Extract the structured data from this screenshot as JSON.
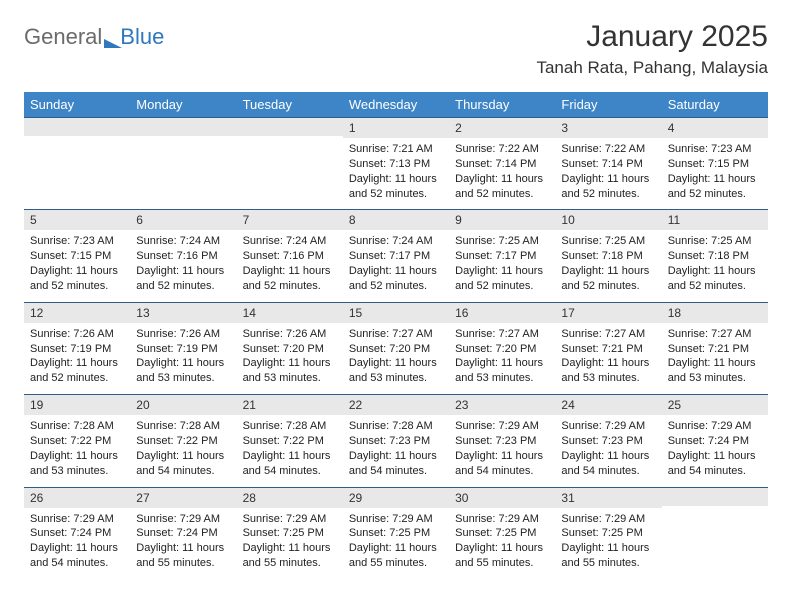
{
  "logo": {
    "text1": "General",
    "text2": "Blue"
  },
  "title": "January 2025",
  "location": "Tanah Rata, Pahang, Malaysia",
  "header_bg": "#3d85c6",
  "daynum_bg": "#e8e8e8",
  "border_color": "#2f5d8a",
  "day_headers": [
    "Sunday",
    "Monday",
    "Tuesday",
    "Wednesday",
    "Thursday",
    "Friday",
    "Saturday"
  ],
  "weeks": [
    [
      {
        "n": "",
        "sunrise": "",
        "sunset": "",
        "daylight": ""
      },
      {
        "n": "",
        "sunrise": "",
        "sunset": "",
        "daylight": ""
      },
      {
        "n": "",
        "sunrise": "",
        "sunset": "",
        "daylight": ""
      },
      {
        "n": "1",
        "sunrise": "Sunrise: 7:21 AM",
        "sunset": "Sunset: 7:13 PM",
        "daylight": "Daylight: 11 hours and 52 minutes."
      },
      {
        "n": "2",
        "sunrise": "Sunrise: 7:22 AM",
        "sunset": "Sunset: 7:14 PM",
        "daylight": "Daylight: 11 hours and 52 minutes."
      },
      {
        "n": "3",
        "sunrise": "Sunrise: 7:22 AM",
        "sunset": "Sunset: 7:14 PM",
        "daylight": "Daylight: 11 hours and 52 minutes."
      },
      {
        "n": "4",
        "sunrise": "Sunrise: 7:23 AM",
        "sunset": "Sunset: 7:15 PM",
        "daylight": "Daylight: 11 hours and 52 minutes."
      }
    ],
    [
      {
        "n": "5",
        "sunrise": "Sunrise: 7:23 AM",
        "sunset": "Sunset: 7:15 PM",
        "daylight": "Daylight: 11 hours and 52 minutes."
      },
      {
        "n": "6",
        "sunrise": "Sunrise: 7:24 AM",
        "sunset": "Sunset: 7:16 PM",
        "daylight": "Daylight: 11 hours and 52 minutes."
      },
      {
        "n": "7",
        "sunrise": "Sunrise: 7:24 AM",
        "sunset": "Sunset: 7:16 PM",
        "daylight": "Daylight: 11 hours and 52 minutes."
      },
      {
        "n": "8",
        "sunrise": "Sunrise: 7:24 AM",
        "sunset": "Sunset: 7:17 PM",
        "daylight": "Daylight: 11 hours and 52 minutes."
      },
      {
        "n": "9",
        "sunrise": "Sunrise: 7:25 AM",
        "sunset": "Sunset: 7:17 PM",
        "daylight": "Daylight: 11 hours and 52 minutes."
      },
      {
        "n": "10",
        "sunrise": "Sunrise: 7:25 AM",
        "sunset": "Sunset: 7:18 PM",
        "daylight": "Daylight: 11 hours and 52 minutes."
      },
      {
        "n": "11",
        "sunrise": "Sunrise: 7:25 AM",
        "sunset": "Sunset: 7:18 PM",
        "daylight": "Daylight: 11 hours and 52 minutes."
      }
    ],
    [
      {
        "n": "12",
        "sunrise": "Sunrise: 7:26 AM",
        "sunset": "Sunset: 7:19 PM",
        "daylight": "Daylight: 11 hours and 52 minutes."
      },
      {
        "n": "13",
        "sunrise": "Sunrise: 7:26 AM",
        "sunset": "Sunset: 7:19 PM",
        "daylight": "Daylight: 11 hours and 53 minutes."
      },
      {
        "n": "14",
        "sunrise": "Sunrise: 7:26 AM",
        "sunset": "Sunset: 7:20 PM",
        "daylight": "Daylight: 11 hours and 53 minutes."
      },
      {
        "n": "15",
        "sunrise": "Sunrise: 7:27 AM",
        "sunset": "Sunset: 7:20 PM",
        "daylight": "Daylight: 11 hours and 53 minutes."
      },
      {
        "n": "16",
        "sunrise": "Sunrise: 7:27 AM",
        "sunset": "Sunset: 7:20 PM",
        "daylight": "Daylight: 11 hours and 53 minutes."
      },
      {
        "n": "17",
        "sunrise": "Sunrise: 7:27 AM",
        "sunset": "Sunset: 7:21 PM",
        "daylight": "Daylight: 11 hours and 53 minutes."
      },
      {
        "n": "18",
        "sunrise": "Sunrise: 7:27 AM",
        "sunset": "Sunset: 7:21 PM",
        "daylight": "Daylight: 11 hours and 53 minutes."
      }
    ],
    [
      {
        "n": "19",
        "sunrise": "Sunrise: 7:28 AM",
        "sunset": "Sunset: 7:22 PM",
        "daylight": "Daylight: 11 hours and 53 minutes."
      },
      {
        "n": "20",
        "sunrise": "Sunrise: 7:28 AM",
        "sunset": "Sunset: 7:22 PM",
        "daylight": "Daylight: 11 hours and 54 minutes."
      },
      {
        "n": "21",
        "sunrise": "Sunrise: 7:28 AM",
        "sunset": "Sunset: 7:22 PM",
        "daylight": "Daylight: 11 hours and 54 minutes."
      },
      {
        "n": "22",
        "sunrise": "Sunrise: 7:28 AM",
        "sunset": "Sunset: 7:23 PM",
        "daylight": "Daylight: 11 hours and 54 minutes."
      },
      {
        "n": "23",
        "sunrise": "Sunrise: 7:29 AM",
        "sunset": "Sunset: 7:23 PM",
        "daylight": "Daylight: 11 hours and 54 minutes."
      },
      {
        "n": "24",
        "sunrise": "Sunrise: 7:29 AM",
        "sunset": "Sunset: 7:23 PM",
        "daylight": "Daylight: 11 hours and 54 minutes."
      },
      {
        "n": "25",
        "sunrise": "Sunrise: 7:29 AM",
        "sunset": "Sunset: 7:24 PM",
        "daylight": "Daylight: 11 hours and 54 minutes."
      }
    ],
    [
      {
        "n": "26",
        "sunrise": "Sunrise: 7:29 AM",
        "sunset": "Sunset: 7:24 PM",
        "daylight": "Daylight: 11 hours and 54 minutes."
      },
      {
        "n": "27",
        "sunrise": "Sunrise: 7:29 AM",
        "sunset": "Sunset: 7:24 PM",
        "daylight": "Daylight: 11 hours and 55 minutes."
      },
      {
        "n": "28",
        "sunrise": "Sunrise: 7:29 AM",
        "sunset": "Sunset: 7:25 PM",
        "daylight": "Daylight: 11 hours and 55 minutes."
      },
      {
        "n": "29",
        "sunrise": "Sunrise: 7:29 AM",
        "sunset": "Sunset: 7:25 PM",
        "daylight": "Daylight: 11 hours and 55 minutes."
      },
      {
        "n": "30",
        "sunrise": "Sunrise: 7:29 AM",
        "sunset": "Sunset: 7:25 PM",
        "daylight": "Daylight: 11 hours and 55 minutes."
      },
      {
        "n": "31",
        "sunrise": "Sunrise: 7:29 AM",
        "sunset": "Sunset: 7:25 PM",
        "daylight": "Daylight: 11 hours and 55 minutes."
      },
      {
        "n": "",
        "sunrise": "",
        "sunset": "",
        "daylight": ""
      }
    ]
  ]
}
